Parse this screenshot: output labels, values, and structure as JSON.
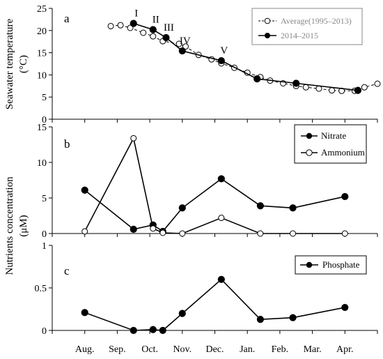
{
  "chart_data": [
    {
      "type": "line",
      "panel_label": "a",
      "ylabel": "Seawater temperature",
      "ylabel_unit": "(°C)",
      "ylim": [
        0,
        25
      ],
      "yticks": [
        0,
        5,
        10,
        15,
        20,
        25
      ],
      "series": [
        {
          "name": "Average(1995–2013)",
          "style": "dashed-open",
          "points": [
            {
              "x": 1.8,
              "y": 21.0
            },
            {
              "x": 2.1,
              "y": 21.2
            },
            {
              "x": 2.4,
              "y": 20.6
            },
            {
              "x": 2.8,
              "y": 19.5
            },
            {
              "x": 3.1,
              "y": 18.7
            },
            {
              "x": 3.4,
              "y": 17.6
            },
            {
              "x": 3.9,
              "y": 17.0
            },
            {
              "x": 4.1,
              "y": 16.4
            },
            {
              "x": 4.5,
              "y": 14.5
            },
            {
              "x": 4.9,
              "y": 13.5
            },
            {
              "x": 5.2,
              "y": 12.6
            },
            {
              "x": 5.6,
              "y": 11.6
            },
            {
              "x": 6.0,
              "y": 10.5
            },
            {
              "x": 6.4,
              "y": 9.5
            },
            {
              "x": 6.7,
              "y": 8.7
            },
            {
              "x": 7.1,
              "y": 8.1
            },
            {
              "x": 7.5,
              "y": 7.5
            },
            {
              "x": 7.8,
              "y": 7.2
            },
            {
              "x": 8.2,
              "y": 6.9
            },
            {
              "x": 8.6,
              "y": 6.5
            },
            {
              "x": 8.9,
              "y": 6.4
            },
            {
              "x": 9.3,
              "y": 6.4
            },
            {
              "x": 9.6,
              "y": 7.2
            },
            {
              "x": 10.0,
              "y": 8.0
            }
          ]
        },
        {
          "name": "2014–2015",
          "style": "solid-filled",
          "points": [
            {
              "x": 2.5,
              "y": 21.6
            },
            {
              "x": 3.1,
              "y": 20.2
            },
            {
              "x": 3.5,
              "y": 18.4
            },
            {
              "x": 4.0,
              "y": 15.4
            },
            {
              "x": 5.2,
              "y": 13.2
            },
            {
              "x": 6.3,
              "y": 9.1
            },
            {
              "x": 7.5,
              "y": 8.1
            },
            {
              "x": 9.4,
              "y": 6.5
            }
          ]
        }
      ],
      "annotations": [
        {
          "text": "I",
          "x": 2.5,
          "y": 21.6
        },
        {
          "text": "II",
          "x": 3.1,
          "y": 20.2
        },
        {
          "text": "III",
          "x": 3.5,
          "y": 18.4
        },
        {
          "text": "IV",
          "x": 4.0,
          "y": 15.4
        },
        {
          "text": "V",
          "x": 5.2,
          "y": 13.2
        }
      ]
    },
    {
      "type": "line",
      "panel_label": "b",
      "ylim": [
        0,
        15
      ],
      "yticks": [
        0,
        5,
        10,
        15
      ],
      "series": [
        {
          "name": "Nitrate",
          "style": "solid-filled",
          "points": [
            {
              "x": 1.0,
              "y": 6.1
            },
            {
              "x": 2.5,
              "y": 0.6
            },
            {
              "x": 3.1,
              "y": 1.2
            },
            {
              "x": 3.4,
              "y": 0.3
            },
            {
              "x": 4.0,
              "y": 3.6
            },
            {
              "x": 5.2,
              "y": 7.7
            },
            {
              "x": 6.4,
              "y": 3.9
            },
            {
              "x": 7.4,
              "y": 3.6
            },
            {
              "x": 9.0,
              "y": 5.2
            }
          ]
        },
        {
          "name": "Ammonium",
          "style": "solid-open",
          "points": [
            {
              "x": 1.0,
              "y": 0.3
            },
            {
              "x": 2.5,
              "y": 13.4
            },
            {
              "x": 3.1,
              "y": 0.7
            },
            {
              "x": 3.4,
              "y": 0.1
            },
            {
              "x": 4.0,
              "y": 0.0
            },
            {
              "x": 5.2,
              "y": 2.2
            },
            {
              "x": 6.4,
              "y": 0.0
            },
            {
              "x": 7.4,
              "y": 0.0
            },
            {
              "x": 9.0,
              "y": 0.0
            }
          ]
        }
      ]
    },
    {
      "type": "line",
      "panel_label": "c",
      "ylim": [
        0,
        1
      ],
      "yticks": [
        0,
        0.5,
        1
      ],
      "ytick_labels": [
        "0",
        "0.5",
        "1"
      ],
      "series": [
        {
          "name": "Phosphate",
          "style": "solid-filled",
          "points": [
            {
              "x": 1.0,
              "y": 0.21
            },
            {
              "x": 2.5,
              "y": 0.0
            },
            {
              "x": 3.1,
              "y": 0.01
            },
            {
              "x": 3.4,
              "y": 0.0
            },
            {
              "x": 4.0,
              "y": 0.2
            },
            {
              "x": 5.2,
              "y": 0.6
            },
            {
              "x": 6.4,
              "y": 0.13
            },
            {
              "x": 7.4,
              "y": 0.15
            },
            {
              "x": 9.0,
              "y": 0.27
            }
          ]
        }
      ]
    }
  ],
  "shared": {
    "nutrients_ylabel": "Nutrients concentration",
    "nutrients_unit": "(μM)",
    "x_categories": [
      "Aug.",
      "Sep.",
      "Oct.",
      "Nov.",
      "Dec.",
      "Jan.",
      "Feb.",
      "Mar.",
      "Apr."
    ],
    "xlim": [
      0,
      10
    ]
  },
  "colors": {
    "line": "#000000",
    "legend_gray": "#888888",
    "gray_text": "#888888"
  }
}
